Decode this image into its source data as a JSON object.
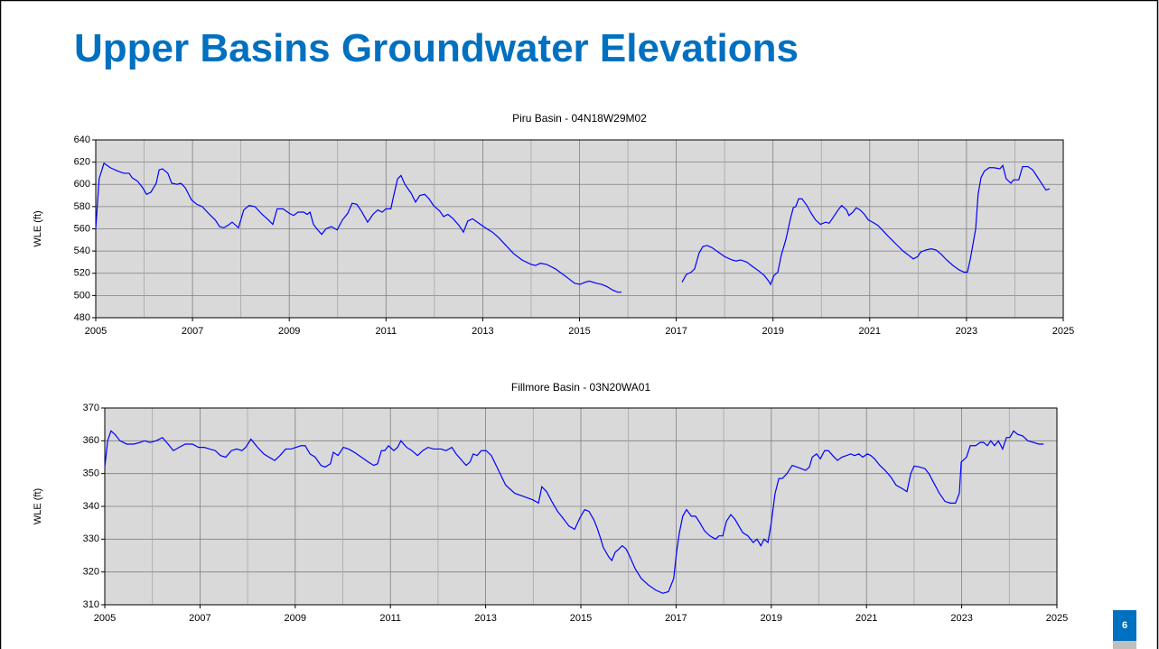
{
  "title": "Upper Basins Groundwater Elevations",
  "page_number": "6",
  "chart_data": [
    {
      "type": "line",
      "title": "Piru Basin - 04N18W29M02",
      "ylabel": "WLE (ft)",
      "color": "#0000ff",
      "xlim": [
        2005,
        2025
      ],
      "xticks": [
        2005,
        2007,
        2009,
        2011,
        2013,
        2015,
        2017,
        2019,
        2021,
        2023,
        2025
      ],
      "xminorticks": [
        2006,
        2008,
        2010,
        2012,
        2014,
        2016,
        2018,
        2020,
        2022,
        2024
      ],
      "ylim": [
        480,
        640
      ],
      "yticks": [
        480,
        500,
        520,
        540,
        560,
        580,
        600,
        620,
        640
      ],
      "grid": true,
      "x": [
        2005.0,
        2005.07,
        2005.17,
        2005.3,
        2005.45,
        2005.58,
        2005.69,
        2005.75,
        2005.86,
        2005.97,
        2006.05,
        2006.14,
        2006.25,
        2006.31,
        2006.38,
        2006.49,
        2006.57,
        2006.68,
        2006.76,
        2006.85,
        2006.98,
        2007.09,
        2007.2,
        2007.35,
        2007.47,
        2007.56,
        2007.65,
        2007.73,
        2007.82,
        2007.95,
        2008.06,
        2008.17,
        2008.29,
        2008.44,
        2008.57,
        2008.66,
        2008.75,
        2008.87,
        2009.0,
        2009.09,
        2009.18,
        2009.3,
        2009.37,
        2009.43,
        2009.5,
        2009.59,
        2009.67,
        2009.76,
        2009.87,
        2009.99,
        2010.1,
        2010.21,
        2010.3,
        2010.4,
        2010.49,
        2010.62,
        2010.73,
        2010.83,
        2010.92,
        2011.0,
        2011.1,
        2011.16,
        2011.24,
        2011.31,
        2011.39,
        2011.52,
        2011.61,
        2011.7,
        2011.8,
        2011.89,
        2011.98,
        2012.11,
        2012.19,
        2012.28,
        2012.39,
        2012.51,
        2012.6,
        2012.69,
        2012.79,
        2012.92,
        2013.05,
        2013.2,
        2013.33,
        2013.48,
        2013.63,
        2013.81,
        2014.0,
        2014.09,
        2014.19,
        2014.32,
        2014.5,
        2014.69,
        2014.9,
        2015.01,
        2015.12,
        2015.2,
        2015.35,
        2015.46,
        2015.57,
        2015.68,
        2015.79,
        2015.87,
        2016.5,
        2017.12,
        2017.21,
        2017.31,
        2017.38,
        2017.47,
        2017.55,
        2017.64,
        2017.74,
        2017.87,
        2018.0,
        2018.15,
        2018.24,
        2018.33,
        2018.46,
        2018.58,
        2018.71,
        2018.82,
        2018.91,
        2018.95,
        2019.02,
        2019.1,
        2019.17,
        2019.27,
        2019.36,
        2019.42,
        2019.47,
        2019.53,
        2019.6,
        2019.7,
        2019.79,
        2019.88,
        2019.98,
        2020.09,
        2020.16,
        2020.24,
        2020.33,
        2020.42,
        2020.52,
        2020.57,
        2020.65,
        2020.72,
        2020.8,
        2020.89,
        2020.97,
        2021.06,
        2021.17,
        2021.28,
        2021.41,
        2021.55,
        2021.69,
        2021.81,
        2021.9,
        2021.99,
        2022.05,
        2022.16,
        2022.27,
        2022.37,
        2022.48,
        2022.59,
        2022.72,
        2022.85,
        2022.95,
        2023.02,
        2023.08,
        2023.15,
        2023.19,
        2023.24,
        2023.3,
        2023.37,
        2023.47,
        2023.56,
        2023.69,
        2023.75,
        2023.82,
        2023.92,
        2023.97,
        2024.08,
        2024.16,
        2024.27,
        2024.37,
        2024.46,
        2024.55,
        2024.64,
        2024.72
      ],
      "values": [
        560,
        605,
        619,
        615,
        612,
        610,
        610,
        606,
        603,
        597,
        591,
        593,
        601,
        613,
        614,
        610,
        601,
        600,
        601,
        597,
        586,
        582,
        580,
        573,
        568,
        562,
        561,
        563,
        566,
        561,
        577,
        581,
        580,
        573,
        568,
        564,
        578,
        578,
        574,
        572,
        575,
        575,
        573,
        575,
        564,
        559,
        555,
        560,
        562,
        559,
        568,
        574,
        583,
        582,
        576,
        566,
        573,
        577,
        575,
        578,
        578,
        590,
        605,
        608,
        600,
        592,
        584,
        590,
        591,
        587,
        581,
        576,
        571,
        573,
        569,
        563,
        557,
        567,
        569,
        565,
        561,
        557,
        552,
        545,
        538,
        532,
        528,
        527,
        529,
        528,
        524,
        518,
        511,
        510,
        512,
        513,
        511,
        510,
        508,
        505,
        503,
        503,
        null,
        512,
        519,
        521,
        524,
        538,
        544,
        545,
        543,
        539,
        535,
        532,
        531,
        532,
        530,
        526,
        522,
        518,
        513,
        510,
        518,
        521,
        536,
        551,
        569,
        579,
        580,
        587,
        587,
        581,
        574,
        568,
        564,
        566,
        565,
        570,
        576,
        581,
        577,
        572,
        575,
        579,
        577,
        573,
        568,
        566,
        563,
        558,
        552,
        546,
        540,
        536,
        533,
        535,
        539,
        541,
        542,
        541,
        537,
        532,
        527,
        523,
        521,
        521,
        533,
        550,
        560,
        591,
        606,
        612,
        615,
        615,
        614,
        617,
        605,
        601,
        604,
        604,
        616,
        616,
        613,
        607,
        601,
        595,
        596
      ]
    },
    {
      "type": "line",
      "title": "Fillmore Basin - 03N20WA01",
      "ylabel": "WLE (ft)",
      "color": "#0000ff",
      "xlim": [
        2005,
        2025
      ],
      "xticks": [
        2005,
        2007,
        2009,
        2011,
        2013,
        2015,
        2017,
        2019,
        2021,
        2023,
        2025
      ],
      "xminorticks": [
        2006,
        2008,
        2010,
        2012,
        2014,
        2016,
        2018,
        2020,
        2022,
        2024
      ],
      "ylim": [
        310,
        370
      ],
      "yticks": [
        310,
        320,
        330,
        340,
        350,
        360,
        370
      ],
      "grid": true,
      "x": [
        2005.0,
        2005.06,
        2005.13,
        2005.21,
        2005.32,
        2005.46,
        2005.61,
        2005.74,
        2005.83,
        2005.95,
        2006.08,
        2006.21,
        2006.33,
        2006.44,
        2006.56,
        2006.69,
        2006.84,
        2006.97,
        2007.09,
        2007.2,
        2007.32,
        2007.43,
        2007.54,
        2007.66,
        2007.77,
        2007.88,
        2007.96,
        2008.07,
        2008.21,
        2008.34,
        2008.45,
        2008.57,
        2008.68,
        2008.8,
        2008.91,
        2009.02,
        2009.12,
        2009.21,
        2009.31,
        2009.42,
        2009.54,
        2009.63,
        2009.74,
        2009.8,
        2009.9,
        2010.01,
        2010.12,
        2010.24,
        2010.39,
        2010.54,
        2010.65,
        2010.73,
        2010.81,
        2010.88,
        2010.96,
        2011.07,
        2011.15,
        2011.22,
        2011.34,
        2011.45,
        2011.57,
        2011.68,
        2011.79,
        2011.91,
        2012.06,
        2012.17,
        2012.29,
        2012.38,
        2012.5,
        2012.59,
        2012.67,
        2012.74,
        2012.82,
        2012.91,
        2013.01,
        2013.12,
        2013.27,
        2013.42,
        2013.61,
        2013.8,
        2013.99,
        2014.11,
        2014.18,
        2014.28,
        2014.39,
        2014.51,
        2014.62,
        2014.75,
        2014.87,
        2014.98,
        2015.08,
        2015.17,
        2015.27,
        2015.34,
        2015.42,
        2015.47,
        2015.53,
        2015.59,
        2015.65,
        2015.72,
        2015.8,
        2015.87,
        2015.95,
        2016.02,
        2016.14,
        2016.27,
        2016.42,
        2016.57,
        2016.72,
        2016.84,
        2016.95,
        2017.01,
        2017.07,
        2017.14,
        2017.22,
        2017.32,
        2017.41,
        2017.5,
        2017.6,
        2017.71,
        2017.83,
        2017.9,
        2017.98,
        2018.06,
        2018.15,
        2018.24,
        2018.32,
        2018.4,
        2018.51,
        2018.62,
        2018.7,
        2018.78,
        2018.85,
        2018.93,
        2019.0,
        2019.08,
        2019.16,
        2019.23,
        2019.33,
        2019.44,
        2019.54,
        2019.63,
        2019.72,
        2019.8,
        2019.86,
        2019.95,
        2020.03,
        2020.12,
        2020.2,
        2020.29,
        2020.39,
        2020.48,
        2020.58,
        2020.67,
        2020.75,
        2020.84,
        2020.92,
        2021.02,
        2021.09,
        2021.17,
        2021.28,
        2021.39,
        2021.51,
        2021.62,
        2021.74,
        2021.85,
        2021.93,
        2022.0,
        2022.12,
        2022.23,
        2022.31,
        2022.42,
        2022.53,
        2022.65,
        2022.76,
        2022.87,
        2022.95,
        2022.99,
        2023.1,
        2023.18,
        2023.29,
        2023.39,
        2023.46,
        2023.54,
        2023.61,
        2023.69,
        2023.77,
        2023.86,
        2023.94,
        2024.01,
        2024.09,
        2024.17,
        2024.28,
        2024.39,
        2024.51,
        2024.62,
        2024.72
      ],
      "values": [
        352,
        360,
        363,
        362,
        360,
        359,
        359,
        359.5,
        360,
        359.5,
        360,
        361,
        359,
        357,
        358,
        359,
        359,
        358,
        358,
        357.5,
        357,
        355.5,
        355,
        357,
        357.5,
        357,
        358,
        360.5,
        358,
        356,
        355,
        354,
        355.5,
        357.5,
        357.5,
        358,
        358.5,
        358.5,
        356,
        355,
        352.5,
        352,
        353,
        356.5,
        355.5,
        358,
        357.5,
        356.5,
        355,
        353.5,
        352.5,
        353,
        357,
        357,
        358.5,
        357,
        358,
        360,
        358,
        357,
        355.5,
        357,
        358,
        357.5,
        357.5,
        357,
        358,
        356,
        354,
        352.5,
        353.5,
        356,
        355.5,
        357,
        357,
        355.5,
        351,
        346.5,
        344,
        343,
        342,
        341,
        346,
        344.5,
        341.5,
        338.5,
        336.5,
        334,
        333,
        336.5,
        339,
        338.5,
        336,
        333.5,
        330,
        327.5,
        326,
        324.5,
        323.5,
        326,
        327,
        328,
        327,
        325,
        321,
        318,
        316,
        314.5,
        313.5,
        314,
        318,
        326,
        332,
        337,
        339,
        337,
        337,
        335,
        332.5,
        331,
        330,
        331,
        331,
        335.5,
        337.5,
        336,
        334,
        332,
        331,
        329,
        330,
        328,
        330,
        329,
        335,
        344,
        348.5,
        348.5,
        350,
        352.5,
        352,
        351.5,
        351,
        352,
        355,
        356,
        354.5,
        357,
        357,
        355.5,
        354,
        355,
        355.5,
        356,
        355.5,
        356,
        355,
        356,
        355.5,
        354.5,
        352.5,
        351,
        349,
        346.5,
        345.5,
        344.5,
        350,
        352.3,
        352,
        351.5,
        350,
        347,
        344,
        341.5,
        341,
        341,
        344,
        353.5,
        355,
        358.5,
        358.5,
        359.5,
        359.5,
        358.5,
        360,
        358.5,
        360,
        357.5,
        361,
        361,
        363,
        362,
        361.5,
        360,
        359.5,
        359,
        359
      ]
    }
  ]
}
